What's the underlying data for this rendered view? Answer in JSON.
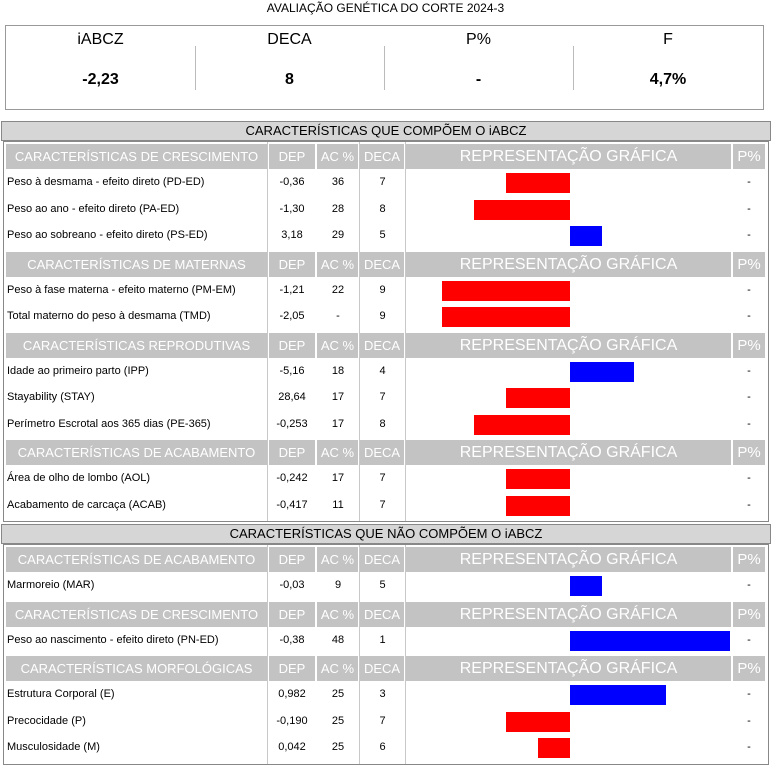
{
  "report_title": "AVALIAÇÃO GENÉTICA DO CORTE 2024-3",
  "summary": [
    {
      "label": "iABCZ",
      "value": "-2,23"
    },
    {
      "label": "DECA",
      "value": "8"
    },
    {
      "label": "P%",
      "value": "-"
    },
    {
      "label": "F",
      "value": "4,7%"
    }
  ],
  "colors": {
    "negative": "#ff0000",
    "positive": "#0000ff",
    "header_bg": "#c3c3c3"
  },
  "columns": {
    "dep": "DEP",
    "ac": "AC %",
    "deca": "DECA",
    "graph": "REPRESENTAÇÃO GRÁFICA",
    "p": "P%"
  },
  "sections": [
    {
      "title": "CARACTERÍSTICAS QUE COMPÕEM O iABCZ",
      "groups": [
        {
          "title": "CARACTERÍSTICAS DE CRESCIMENTO",
          "rows": [
            {
              "name": "Peso à desmama - efeito direto (PD-ED)",
              "dep": "-0,36",
              "ac": "36",
              "deca": "7",
              "p": "-",
              "bar": -2
            },
            {
              "name": "Peso ao ano - efeito direto (PA-ED)",
              "dep": "-1,30",
              "ac": "28",
              "deca": "8",
              "p": "-",
              "bar": -3
            },
            {
              "name": "Peso ao sobreano - efeito direto (PS-ED)",
              "dep": "3,18",
              "ac": "29",
              "deca": "5",
              "p": "-",
              "bar": 1
            }
          ]
        },
        {
          "title": "CARACTERÍSTICAS DE MATERNAS",
          "rows": [
            {
              "name": "Peso à fase materna - efeito materno (PM-EM)",
              "dep": "-1,21",
              "ac": "22",
              "deca": "9",
              "p": "-",
              "bar": -4
            },
            {
              "name": "Total materno do peso à desmama (TMD)",
              "dep": "-2,05",
              "ac": "-",
              "deca": "9",
              "p": "-",
              "bar": -4
            }
          ]
        },
        {
          "title": "CARACTERÍSTICAS REPRODUTIVAS",
          "rows": [
            {
              "name": "Idade ao primeiro parto (IPP)",
              "dep": "-5,16",
              "ac": "18",
              "deca": "4",
              "p": "-",
              "bar": 2
            },
            {
              "name": "Stayability (STAY)",
              "dep": "28,64",
              "ac": "17",
              "deca": "7",
              "p": "-",
              "bar": -2
            },
            {
              "name": "Perímetro Escrotal aos 365 dias (PE-365)",
              "dep": "-0,253",
              "ac": "17",
              "deca": "8",
              "p": "-",
              "bar": -3
            }
          ]
        },
        {
          "title": "CARACTERÍSTICAS DE ACABAMENTO",
          "rows": [
            {
              "name": "Área de olho de lombo (AOL)",
              "dep": "-0,242",
              "ac": "17",
              "deca": "7",
              "p": "-",
              "bar": -2
            },
            {
              "name": "Acabamento de carcaça (ACAB)",
              "dep": "-0,417",
              "ac": "11",
              "deca": "7",
              "p": "-",
              "bar": -2
            }
          ]
        }
      ]
    },
    {
      "title": "CARACTERÍSTICAS QUE NÃO COMPÕEM O iABCZ",
      "groups": [
        {
          "title": "CARACTERÍSTICAS DE ACABAMENTO",
          "rows": [
            {
              "name": "Marmoreio (MAR)",
              "dep": "-0,03",
              "ac": "9",
              "deca": "5",
              "p": "-",
              "bar": 1
            }
          ]
        },
        {
          "title": "CARACTERÍSTICAS DE CRESCIMENTO",
          "rows": [
            {
              "name": "Peso ao nascimento - efeito direto (PN-ED)",
              "dep": "-0,38",
              "ac": "48",
              "deca": "1",
              "p": "-",
              "bar": 5
            }
          ]
        },
        {
          "title": "CARACTERÍSTICAS MORFOLÓGICAS",
          "rows": [
            {
              "name": "Estrutura Corporal (E)",
              "dep": "0,982",
              "ac": "25",
              "deca": "3",
              "p": "-",
              "bar": 3
            },
            {
              "name": "Precocidade (P)",
              "dep": "-0,190",
              "ac": "25",
              "deca": "7",
              "p": "-",
              "bar": -2
            },
            {
              "name": "Musculosidade (M)",
              "dep": "0,042",
              "ac": "25",
              "deca": "6",
              "p": "-",
              "bar": -1
            }
          ]
        }
      ]
    }
  ]
}
